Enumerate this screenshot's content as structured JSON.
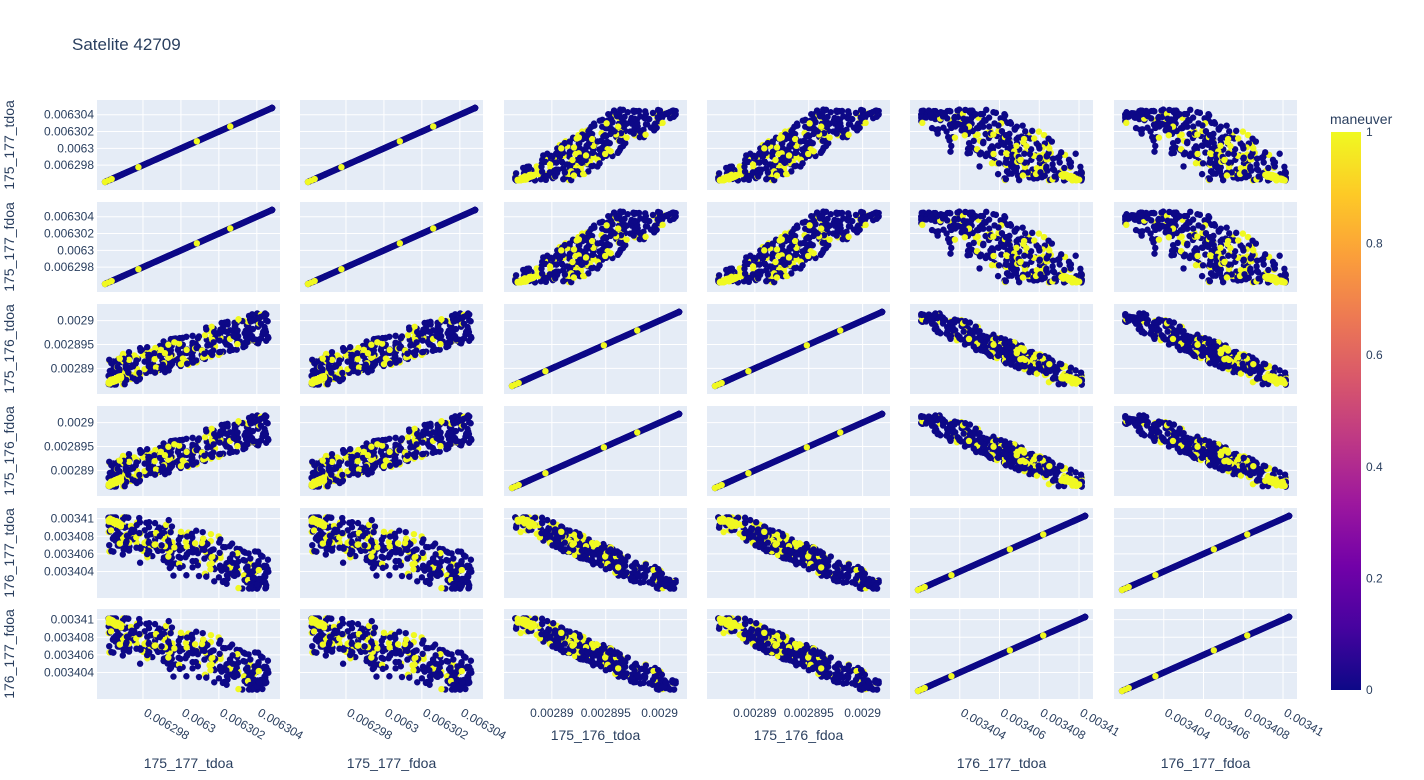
{
  "chart_data": {
    "type": "scatter",
    "title": "Satelite 42709",
    "dimensions": [
      "175_177_tdoa",
      "175_177_fdoa",
      "175_176_tdoa",
      "175_176_fdoa",
      "176_177_tdoa",
      "176_177_fdoa"
    ],
    "axis_labels": [
      "175_177_tdoa",
      "175_177_fdoa",
      "175_176_tdoa",
      "175_176_fdoa",
      "176_177_tdoa",
      "176_177_fdoa"
    ],
    "ranges": [
      [
        0.006296,
        0.0063048
      ],
      [
        0.006296,
        0.0063048
      ],
      [
        0.0028863,
        0.0029018
      ],
      [
        0.0028863,
        0.0029018
      ],
      [
        0.0034019,
        0.0034103
      ],
      [
        0.0034019,
        0.0034103
      ]
    ],
    "ticks": [
      {
        "values": [
          0.006298,
          0.0063,
          0.006302,
          0.006304
        ],
        "labels": [
          "0.006298",
          "0.0063",
          "0.006302",
          "0.006304"
        ]
      },
      {
        "values": [
          0.006298,
          0.0063,
          0.006302,
          0.006304
        ],
        "labels": [
          "0.006298",
          "0.0063",
          "0.006302",
          "0.006304"
        ]
      },
      {
        "values": [
          0.00289,
          0.002895,
          0.0029
        ],
        "labels": [
          "0.00289",
          "0.002895",
          "0.0029"
        ]
      },
      {
        "values": [
          0.00289,
          0.002895,
          0.0029
        ],
        "labels": [
          "0.00289",
          "0.002895",
          "0.0029"
        ]
      },
      {
        "values": [
          0.003404,
          0.003406,
          0.003408,
          0.00341
        ],
        "labels": [
          "0.003404",
          "0.003406",
          "0.003408",
          "0.00341"
        ]
      },
      {
        "values": [
          0.003404,
          0.003406,
          0.003408,
          0.00341
        ],
        "labels": [
          "0.003404",
          "0.003406",
          "0.003408",
          "0.00341"
        ]
      }
    ],
    "x_tick_rotated": [
      true,
      true,
      false,
      false,
      true,
      true
    ],
    "color_by": "maneuver",
    "colorbar": {
      "title": "maneuver",
      "range": [
        0,
        1
      ],
      "tick_values": [
        0,
        0.2,
        0.4,
        0.6,
        0.8,
        1
      ],
      "tick_labels": [
        "0",
        "0.2",
        "0.4",
        "0.6",
        "0.8",
        "1"
      ],
      "colorscale": [
        "#0d0887",
        "#46039f",
        "#7201a8",
        "#9c179e",
        "#bd3786",
        "#d8576b",
        "#ed7953",
        "#fb9f3a",
        "#fdca26",
        "#f0f921"
      ]
    },
    "grid": true,
    "plot_bgcolor": "#e5ecf6",
    "diagonal_points": [
      {
        "x": 0.0,
        "maneuver": 1
      },
      {
        "x": 0.02,
        "maneuver": 1
      },
      {
        "x": 0.04,
        "maneuver": 1
      },
      {
        "x": 0.06,
        "maneuver": 0
      },
      {
        "x": 0.1,
        "maneuver": 0
      },
      {
        "x": 0.15,
        "maneuver": 0
      },
      {
        "x": 0.2,
        "maneuver": 1
      },
      {
        "x": 0.25,
        "maneuver": 0
      },
      {
        "x": 0.3,
        "maneuver": 0
      },
      {
        "x": 0.35,
        "maneuver": 0
      },
      {
        "x": 0.4,
        "maneuver": 0
      },
      {
        "x": 0.45,
        "maneuver": 0
      },
      {
        "x": 0.5,
        "maneuver": 0
      },
      {
        "x": 0.55,
        "maneuver": 1
      },
      {
        "x": 0.6,
        "maneuver": 0
      },
      {
        "x": 0.65,
        "maneuver": 0
      },
      {
        "x": 0.7,
        "maneuver": 0
      },
      {
        "x": 0.75,
        "maneuver": 1
      },
      {
        "x": 0.8,
        "maneuver": 0
      },
      {
        "x": 0.85,
        "maneuver": 0
      },
      {
        "x": 0.9,
        "maneuver": 0
      },
      {
        "x": 0.95,
        "maneuver": 0
      },
      {
        "x": 1.0,
        "maneuver": 0
      }
    ]
  }
}
